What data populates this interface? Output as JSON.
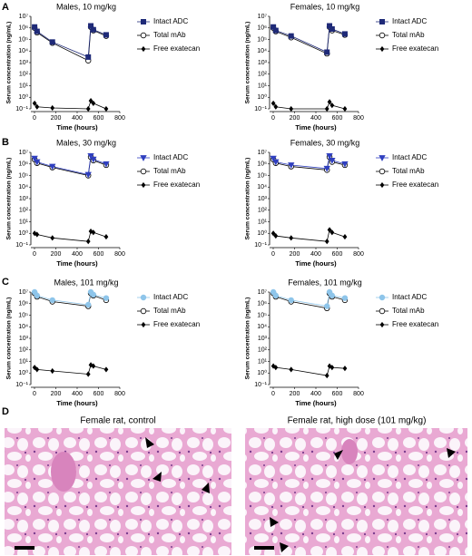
{
  "panel_labels": [
    "A",
    "B",
    "C",
    "D"
  ],
  "images": [
    {
      "title": "Female rat, control"
    },
    {
      "title": "Female rat, high dose (101 mg/kg)"
    }
  ],
  "chart_data": [
    {
      "type": "line",
      "title": "Males, 10 mg/kg",
      "xlabel": "Time (hours)",
      "ylabel": "Serum concentration (ng/mL)",
      "log_y": true,
      "legend": "right",
      "x": [
        1,
        24,
        168,
        504,
        528,
        552,
        672
      ],
      "xlim": [
        0,
        800
      ],
      "xticks": [
        0,
        200,
        400,
        600,
        800
      ],
      "ylim": [
        0.1,
        10000000
      ],
      "yticks": [
        {
          "value": 0.1,
          "label": "10⁻¹"
        },
        {
          "value": 1,
          "label": "10⁰"
        },
        {
          "value": 10,
          "label": "10¹"
        },
        {
          "value": 100,
          "label": "10²"
        },
        {
          "value": 1000,
          "label": "10³"
        },
        {
          "value": 10000,
          "label": "10⁴"
        },
        {
          "value": 100000,
          "label": "10⁵"
        },
        {
          "value": 1000000,
          "label": "10⁶"
        },
        {
          "value": 10000000,
          "label": "10⁷"
        }
      ],
      "series": [
        {
          "name": "Intact ADC",
          "color": "#1f2a78",
          "fill": "#1f2a78",
          "marker": "square",
          "values": [
            1200000,
            500000,
            60000,
            3000,
            1500000,
            700000,
            250000
          ]
        },
        {
          "name": "Total mAb",
          "color": "#000000",
          "fill": "#ffffff",
          "marker": "circle",
          "values": [
            1000000,
            400000,
            50000,
            1500,
            1200000,
            600000,
            200000
          ]
        },
        {
          "name": "Free exatecan",
          "color": "#000000",
          "fill": "#000000",
          "marker": "diamond",
          "values": [
            0.3,
            0.15,
            0.12,
            0.1,
            0.5,
            0.3,
            0.1
          ]
        }
      ]
    },
    {
      "type": "line",
      "title": "Females, 10 mg/kg",
      "xlabel": "Time (hours)",
      "ylabel": "Serum concentration (ng/mL)",
      "log_y": true,
      "legend": "right",
      "x": [
        1,
        24,
        168,
        504,
        528,
        552,
        672
      ],
      "xlim": [
        0,
        800
      ],
      "xticks": [
        0,
        200,
        400,
        600,
        800
      ],
      "ylim": [
        0.1,
        10000000
      ],
      "yticks": [
        {
          "value": 0.1,
          "label": "10⁻¹"
        },
        {
          "value": 1,
          "label": "10⁰"
        },
        {
          "value": 10,
          "label": "10¹"
        },
        {
          "value": 100,
          "label": "10²"
        },
        {
          "value": 1000,
          "label": "10³"
        },
        {
          "value": 10000,
          "label": "10⁴"
        },
        {
          "value": 100000,
          "label": "10⁵"
        },
        {
          "value": 1000000,
          "label": "10⁶"
        },
        {
          "value": 10000000,
          "label": "10⁷"
        }
      ],
      "series": [
        {
          "name": "Intact ADC",
          "color": "#1f2a78",
          "fill": "#1f2a78",
          "marker": "square",
          "values": [
            1200000,
            600000,
            200000,
            8000,
            1500000,
            800000,
            300000
          ]
        },
        {
          "name": "Total mAb",
          "color": "#000000",
          "fill": "#ffffff",
          "marker": "circle",
          "values": [
            1000000,
            500000,
            150000,
            6000,
            1200000,
            600000,
            250000
          ]
        },
        {
          "name": "Free exatecan",
          "color": "#000000",
          "fill": "#000000",
          "marker": "diamond",
          "values": [
            0.3,
            0.15,
            0.1,
            0.1,
            0.4,
            0.2,
            0.1
          ]
        }
      ]
    },
    {
      "type": "line",
      "title": "Males, 30 mg/kg",
      "xlabel": "Time (hours)",
      "ylabel": "Serum concentration (ng/mL)",
      "log_y": true,
      "legend": "right",
      "x": [
        1,
        24,
        168,
        504,
        528,
        552,
        672
      ],
      "xlim": [
        0,
        800
      ],
      "xticks": [
        0,
        200,
        400,
        600,
        800
      ],
      "ylim": [
        0.1,
        10000000
      ],
      "yticks": [
        {
          "value": 0.1,
          "label": "10⁻¹"
        },
        {
          "value": 1,
          "label": "10⁰"
        },
        {
          "value": 10,
          "label": "10¹"
        },
        {
          "value": 100,
          "label": "10²"
        },
        {
          "value": 1000,
          "label": "10³"
        },
        {
          "value": 10000,
          "label": "10⁴"
        },
        {
          "value": 100000,
          "label": "10⁵"
        },
        {
          "value": 1000000,
          "label": "10⁶"
        },
        {
          "value": 10000000,
          "label": "10⁷"
        }
      ],
      "series": [
        {
          "name": "Intact ADC",
          "color": "#2f3fbf",
          "fill": "#2f3fbf",
          "marker": "triangle-down",
          "values": [
            3000000,
            1500000,
            600000,
            120000,
            5000000,
            2500000,
            1000000
          ]
        },
        {
          "name": "Total mAb",
          "color": "#000000",
          "fill": "#ffffff",
          "marker": "circle",
          "values": [
            2500000,
            1200000,
            500000,
            100000,
            4000000,
            2000000,
            800000
          ]
        },
        {
          "name": "Free exatecan",
          "color": "#000000",
          "fill": "#000000",
          "marker": "diamond",
          "values": [
            1,
            0.8,
            0.4,
            0.2,
            1.5,
            1.2,
            0.5
          ]
        }
      ]
    },
    {
      "type": "line",
      "title": "Females, 30 mg/kg",
      "xlabel": "Time (hours)",
      "ylabel": "Serum concentration (ng/mL)",
      "log_y": true,
      "legend": "right",
      "x": [
        1,
        24,
        168,
        504,
        528,
        552,
        672
      ],
      "xlim": [
        0,
        800
      ],
      "xticks": [
        0,
        200,
        400,
        600,
        800
      ],
      "ylim": [
        0.1,
        10000000
      ],
      "yticks": [
        {
          "value": 0.1,
          "label": "10⁻¹"
        },
        {
          "value": 1,
          "label": "10⁰"
        },
        {
          "value": 10,
          "label": "10¹"
        },
        {
          "value": 100,
          "label": "10²"
        },
        {
          "value": 1000,
          "label": "10³"
        },
        {
          "value": 10000,
          "label": "10⁴"
        },
        {
          "value": 100000,
          "label": "10⁵"
        },
        {
          "value": 1000000,
          "label": "10⁶"
        },
        {
          "value": 10000000,
          "label": "10⁷"
        }
      ],
      "series": [
        {
          "name": "Intact ADC",
          "color": "#2f3fbf",
          "fill": "#2f3fbf",
          "marker": "triangle-down",
          "values": [
            3000000,
            1500000,
            800000,
            400000,
            5000000,
            2000000,
            1000000
          ]
        },
        {
          "name": "Total mAb",
          "color": "#000000",
          "fill": "#ffffff",
          "marker": "circle",
          "values": [
            2500000,
            1200000,
            600000,
            300000,
            4000000,
            1500000,
            800000
          ]
        },
        {
          "name": "Free exatecan",
          "color": "#000000",
          "fill": "#000000",
          "marker": "diamond",
          "values": [
            1,
            0.6,
            0.4,
            0.2,
            2,
            1.2,
            0.5
          ]
        }
      ]
    },
    {
      "type": "line",
      "title": "Males, 101 mg/kg",
      "xlabel": "Time (hours)",
      "ylabel": "Serum concentration (ng/mL)",
      "log_y": true,
      "legend": "right",
      "x": [
        1,
        24,
        168,
        504,
        528,
        552,
        672
      ],
      "xlim": [
        0,
        800
      ],
      "xticks": [
        0,
        200,
        400,
        600,
        800
      ],
      "ylim": [
        0.1,
        10000000
      ],
      "yticks": [
        {
          "value": 0.1,
          "label": "10⁻¹"
        },
        {
          "value": 1,
          "label": "10⁰"
        },
        {
          "value": 10,
          "label": "10¹"
        },
        {
          "value": 100,
          "label": "10²"
        },
        {
          "value": 1000,
          "label": "10³"
        },
        {
          "value": 10000,
          "label": "10⁴"
        },
        {
          "value": 100000,
          "label": "10⁵"
        },
        {
          "value": 1000000,
          "label": "10⁶"
        },
        {
          "value": 10000000,
          "label": "10⁷"
        }
      ],
      "series": [
        {
          "name": "Intact ADC",
          "color": "#8ec5ea",
          "fill": "#8ec5ea",
          "marker": "circle",
          "values": [
            10000000,
            5000000,
            2000000,
            800000,
            10000000,
            6000000,
            3000000
          ]
        },
        {
          "name": "Total mAb",
          "color": "#000000",
          "fill": "#ffffff",
          "marker": "circle",
          "values": [
            8000000,
            4000000,
            1500000,
            600000,
            8000000,
            5000000,
            2000000
          ]
        },
        {
          "name": "Free exatecan",
          "color": "#000000",
          "fill": "#000000",
          "marker": "diamond",
          "values": [
            3,
            2,
            1.5,
            0.8,
            5,
            4,
            2
          ]
        }
      ]
    },
    {
      "type": "line",
      "title": "Females, 101 mg/kg",
      "xlabel": "Time (hours)",
      "ylabel": "Serum concentration (ng/mL)",
      "log_y": true,
      "legend": "right",
      "x": [
        1,
        24,
        168,
        504,
        528,
        552,
        672
      ],
      "xlim": [
        0,
        800
      ],
      "xticks": [
        0,
        200,
        400,
        600,
        800
      ],
      "ylim": [
        0.1,
        10000000
      ],
      "yticks": [
        {
          "value": 0.1,
          "label": "10⁻¹"
        },
        {
          "value": 1,
          "label": "10⁰"
        },
        {
          "value": 10,
          "label": "10¹"
        },
        {
          "value": 100,
          "label": "10²"
        },
        {
          "value": 1000,
          "label": "10³"
        },
        {
          "value": 10000,
          "label": "10⁴"
        },
        {
          "value": 100000,
          "label": "10⁵"
        },
        {
          "value": 1000000,
          "label": "10⁶"
        },
        {
          "value": 10000000,
          "label": "10⁷"
        }
      ],
      "series": [
        {
          "name": "Intact ADC",
          "color": "#8ec5ea",
          "fill": "#8ec5ea",
          "marker": "circle",
          "values": [
            10000000,
            5000000,
            2000000,
            600000,
            10000000,
            5000000,
            3000000
          ]
        },
        {
          "name": "Total mAb",
          "color": "#000000",
          "fill": "#ffffff",
          "marker": "circle",
          "values": [
            8000000,
            4000000,
            1500000,
            400000,
            8000000,
            4000000,
            2000000
          ]
        },
        {
          "name": "Free exatecan",
          "color": "#000000",
          "fill": "#000000",
          "marker": "diamond",
          "values": [
            4,
            3,
            2,
            0.6,
            4,
            3,
            2.5
          ]
        }
      ]
    }
  ]
}
